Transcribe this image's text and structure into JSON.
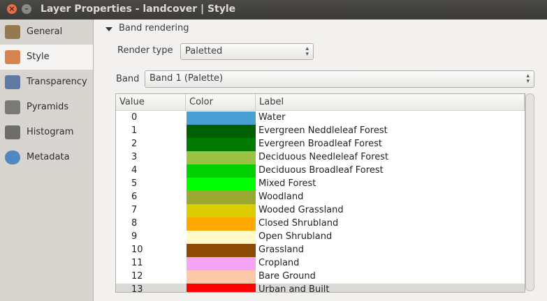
{
  "window": {
    "title": "Layer Properties - landcover | Style"
  },
  "sidebar": {
    "items": [
      "General",
      "Style",
      "Transparency",
      "Pyramids",
      "Histogram",
      "Metadata"
    ],
    "selected": 1
  },
  "section": {
    "title": "Band rendering"
  },
  "render_type": {
    "label": "Render type",
    "value": "Paletted"
  },
  "band": {
    "label": "Band",
    "value": "Band 1 (Palette)"
  },
  "table": {
    "headers": [
      "Value",
      "Color",
      "Label"
    ],
    "rows": [
      [
        0,
        "#4a9fd5",
        "Water"
      ],
      [
        1,
        "#005f00",
        "Evergreen Neddleleaf Forest"
      ],
      [
        2,
        "#007a00",
        "Evergreen Broadleaf Forest"
      ],
      [
        3,
        "#9cc244",
        "Deciduous Needleleaf Forest"
      ],
      [
        4,
        "#00d000",
        "Deciduous Broadleaf Forest"
      ],
      [
        5,
        "#00ff00",
        "Mixed Forest"
      ],
      [
        6,
        "#9aa832",
        "Woodland"
      ],
      [
        7,
        "#dccd00",
        "Wooded Grassland"
      ],
      [
        8,
        "#ffa800",
        "Closed Shrubland"
      ],
      [
        9,
        "#fffac8",
        "Open Shrubland"
      ],
      [
        10,
        "#8c4a04",
        "Grassland"
      ],
      [
        11,
        "#f5a5f5",
        "Cropland"
      ],
      [
        12,
        "#fdc9ab",
        "Bare Ground"
      ],
      [
        13,
        "#ff0000",
        "Urban and Built"
      ]
    ]
  }
}
